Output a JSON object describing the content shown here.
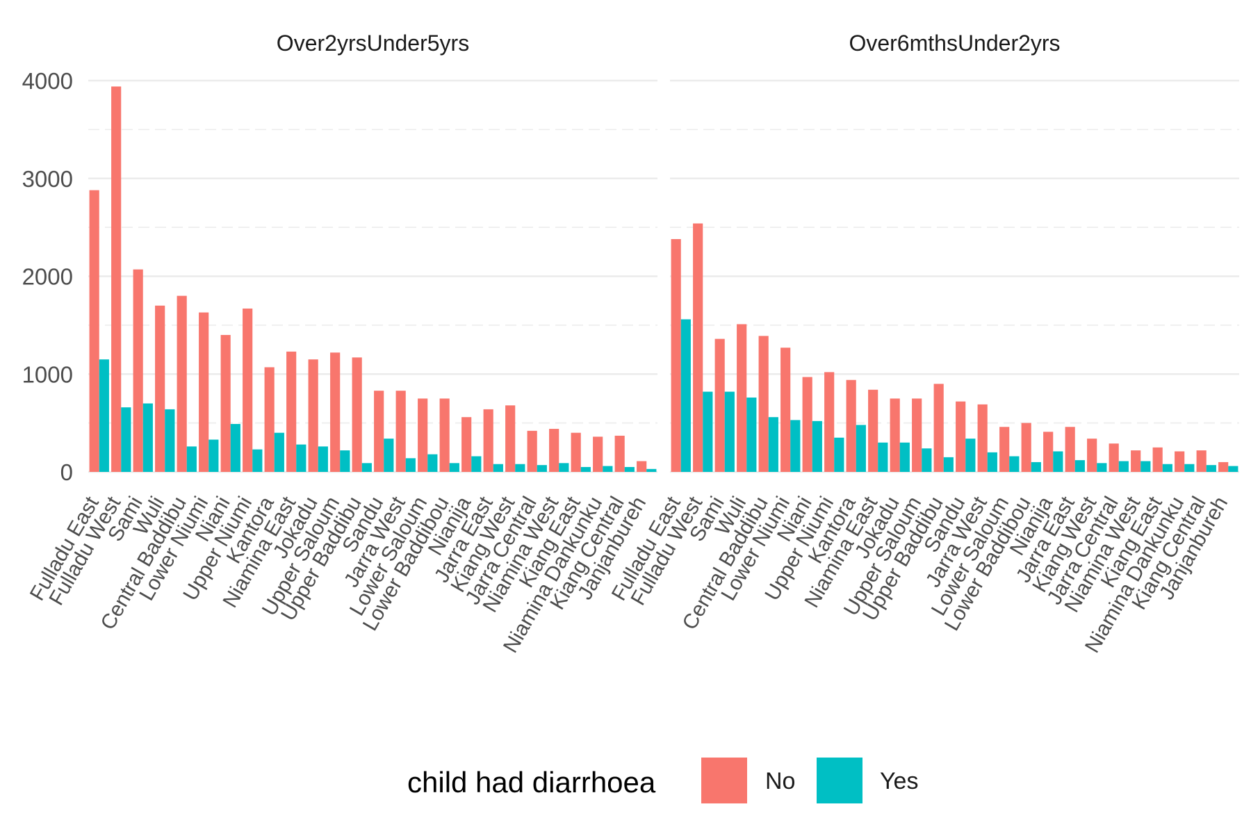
{
  "chart_data": {
    "type": "bar",
    "categories": [
      "Fulladu East",
      "Fulladu West",
      "Sami",
      "Wuli",
      "Central Baddibu",
      "Lower Niumi",
      "Niani",
      "Upper Niumi",
      "Kantora",
      "Niamina East",
      "Jokadu",
      "Upper Saloum",
      "Upper Baddibu",
      "Sandu",
      "Jarra West",
      "Lower Saloum",
      "Lower Baddibou",
      "Nianija",
      "Jarra East",
      "Kiang West",
      "Jarra Central",
      "Niamina West",
      "Kiang East",
      "Niamina Dankunku",
      "Kiang Central",
      "Janjanbureh"
    ],
    "ylim": [
      0,
      4000
    ],
    "y_ticks": [
      0,
      1000,
      2000,
      3000,
      4000
    ],
    "y_tick_labels": [
      "0",
      "1000",
      "2000",
      "3000",
      "4000"
    ],
    "grid": true,
    "legend": {
      "title": "child had diarrhoea",
      "position": "bottom",
      "entries": [
        {
          "label": "No",
          "color": "#F8766D"
        },
        {
          "label": "Yes",
          "color": "#00BFC4"
        }
      ]
    },
    "facets": [
      {
        "title": "Over2yrsUnder5yrs",
        "series": [
          {
            "name": "No",
            "color": "#F8766D",
            "values": [
              2880,
              3940,
              2070,
              1700,
              1800,
              1630,
              1400,
              1670,
              1070,
              1230,
              1150,
              1220,
              1170,
              830,
              830,
              750,
              750,
              560,
              640,
              680,
              420,
              440,
              400,
              360,
              370,
              110
            ]
          },
          {
            "name": "Yes",
            "color": "#00BFC4",
            "values": [
              1150,
              660,
              700,
              640,
              260,
              330,
              490,
              230,
              400,
              280,
              260,
              220,
              90,
              340,
              140,
              180,
              90,
              160,
              80,
              80,
              70,
              90,
              50,
              60,
              50,
              30
            ]
          }
        ]
      },
      {
        "title": "Over6mthsUnder2yrs",
        "series": [
          {
            "name": "No",
            "color": "#F8766D",
            "values": [
              2380,
              2540,
              1360,
              1510,
              1390,
              1270,
              970,
              1020,
              940,
              840,
              750,
              750,
              900,
              720,
              690,
              460,
              500,
              410,
              460,
              340,
              290,
              220,
              250,
              210,
              220,
              100
            ]
          },
          {
            "name": "Yes",
            "color": "#00BFC4",
            "values": [
              1560,
              820,
              820,
              760,
              560,
              530,
              520,
              350,
              480,
              300,
              300,
              240,
              150,
              340,
              200,
              160,
              100,
              210,
              120,
              90,
              110,
              110,
              80,
              80,
              70,
              60
            ]
          }
        ]
      }
    ]
  }
}
